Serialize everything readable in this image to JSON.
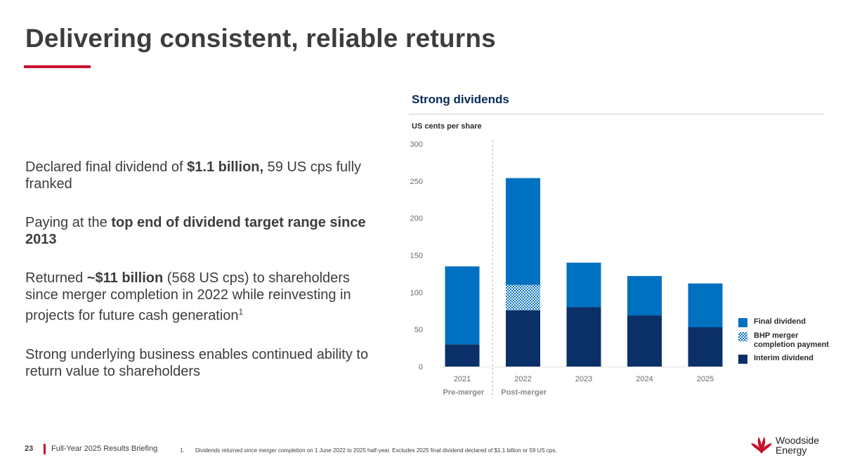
{
  "slide": {
    "title": "Delivering consistent, reliable returns",
    "accent_color": "#c8102e"
  },
  "bullets": [
    {
      "parts": [
        {
          "t": "Declared final dividend of "
        },
        {
          "t": "$1.1 billion,",
          "b": true
        },
        {
          "t": " 59 US cps fully franked"
        }
      ]
    },
    {
      "parts": [
        {
          "t": "Paying at the "
        },
        {
          "t": "top end of dividend target range since 2013",
          "b": true
        }
      ]
    },
    {
      "parts": [
        {
          "t": "Returned "
        },
        {
          "t": "~$11 billion",
          "b": true
        },
        {
          "t": " (568 US cps) to shareholders since merger completion in 2022 while reinvesting in projects for future cash generation"
        },
        {
          "t": "1",
          "sup": true
        }
      ]
    },
    {
      "parts": [
        {
          "t": "Strong underlying business enables continued ability to return value to shareholders"
        }
      ]
    }
  ],
  "chart_heading": "Strong dividends",
  "chart_data": {
    "type": "bar",
    "stacked": true,
    "categories": [
      "2021",
      "2022",
      "2023",
      "2024",
      "2025"
    ],
    "series": [
      {
        "name": "Interim dividend",
        "values": [
          30,
          76,
          80,
          69,
          53
        ],
        "color": "#0b3068",
        "pattern": false
      },
      {
        "name": "BHP merger completion payment",
        "values": [
          0,
          34,
          0,
          0,
          0
        ],
        "color": "#0070c0",
        "pattern": true
      },
      {
        "name": "Final dividend",
        "values": [
          105,
          144,
          60,
          53,
          59
        ],
        "color": "#0070c0",
        "pattern": false
      }
    ],
    "ylabel": "US cents per share",
    "ylim": [
      0,
      300
    ],
    "yticks": [
      0,
      50,
      100,
      150,
      200,
      250,
      300
    ],
    "grid": false,
    "annotations": [
      "Pre-merger",
      "Post-merger"
    ],
    "legend_position": "right",
    "legend_order": [
      "Final dividend",
      "BHP merger completion payment",
      "Interim dividend"
    ]
  },
  "footer": {
    "page_number": "23",
    "label": "Full-Year 2025 Results Briefing",
    "footnote_number": "1.",
    "footnote": "Dividends returned since merger completion on 1 June 2022 to 2025 half-year. Excludes 2025 final dividend declared of $1.1 billion or 59 US cps."
  },
  "logo": {
    "line1": "Woodside",
    "line2": "Energy",
    "icon": "woodside-flower-icon",
    "color": "#c8102e"
  }
}
